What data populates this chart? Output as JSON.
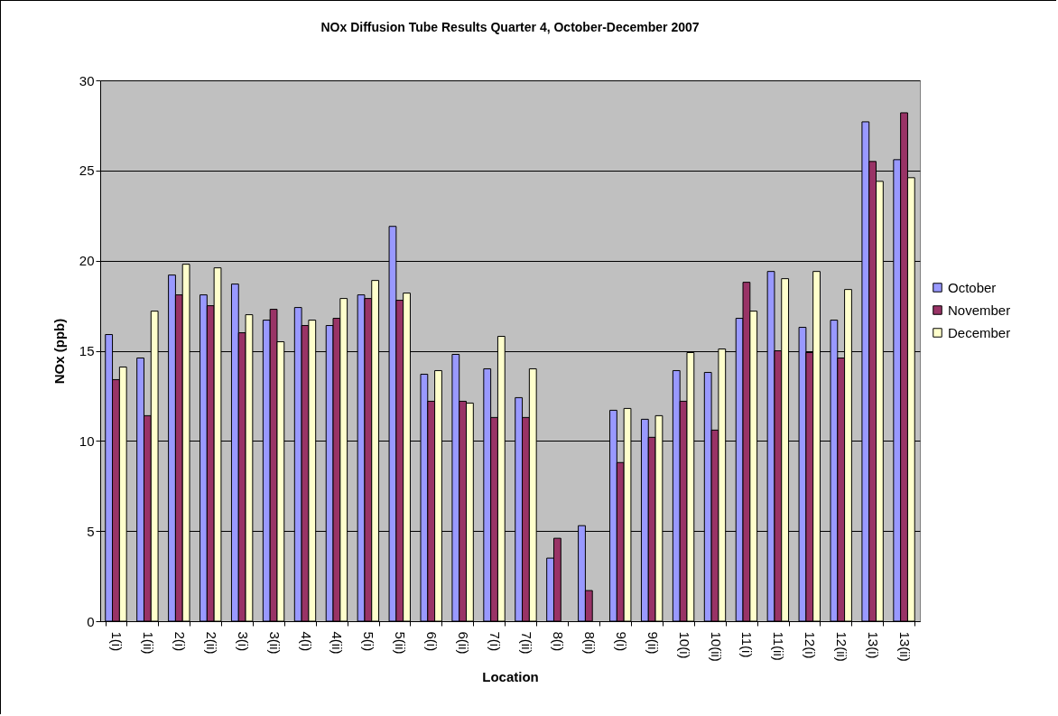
{
  "chart_data": {
    "type": "bar",
    "title": "NOx  Diffusion Tube Results Quarter 4, October-December 2007",
    "xlabel": "Location",
    "ylabel": "NOx (ppb)",
    "categories": [
      "1(i)",
      "1(ii)",
      "2(i)",
      "2(ii)",
      "3(i)",
      "3(ii)",
      "4(i)",
      "4(ii)",
      "5(i)",
      "5(ii)",
      "6(i)",
      "6(ii)",
      "7(i)",
      "7(ii)",
      "8(i)",
      "8(ii)",
      "9(i)",
      "9(ii)",
      "10(i)",
      "10(ii)",
      "11(i)",
      "11(ii)",
      "12(i)",
      "12(ii)",
      "13(i)",
      "13(ii)"
    ],
    "series": [
      {
        "name": "October",
        "color": "#9999ff",
        "values": [
          15.9,
          14.6,
          19.2,
          18.1,
          18.7,
          16.7,
          17.4,
          16.4,
          18.1,
          21.9,
          13.7,
          14.8,
          14.0,
          12.4,
          3.5,
          5.3,
          11.7,
          11.2,
          13.9,
          13.8,
          16.8,
          19.4,
          16.3,
          16.7,
          27.7,
          25.6
        ]
      },
      {
        "name": "November",
        "color": "#993366",
        "values": [
          13.4,
          11.4,
          18.1,
          17.5,
          16.0,
          17.3,
          16.4,
          16.8,
          17.9,
          17.8,
          12.2,
          12.2,
          11.3,
          11.3,
          4.6,
          1.7,
          8.8,
          10.2,
          12.2,
          10.6,
          18.8,
          15.0,
          14.9,
          14.6,
          25.5,
          28.2
        ]
      },
      {
        "name": "December",
        "color": "#ffffcc",
        "values": [
          14.1,
          17.2,
          19.8,
          19.6,
          17.0,
          15.5,
          16.7,
          17.9,
          18.9,
          18.2,
          13.9,
          12.1,
          15.8,
          14.0,
          null,
          null,
          11.8,
          11.4,
          14.9,
          15.1,
          17.2,
          19.0,
          19.4,
          18.4,
          24.4,
          24.6
        ]
      }
    ],
    "ylim": [
      0,
      30
    ],
    "yticks": [
      0,
      5,
      10,
      15,
      20,
      25,
      30
    ],
    "grid": "y",
    "legend": "right"
  }
}
